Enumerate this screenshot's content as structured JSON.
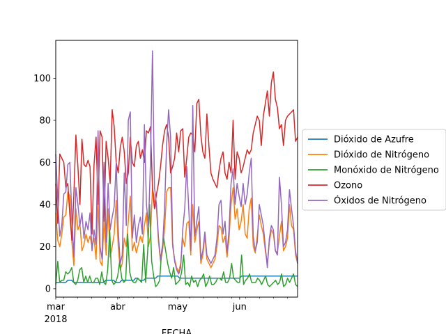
{
  "chart_data": {
    "type": "line",
    "title": "",
    "xlabel": "FECHA",
    "ylabel": "",
    "x_start": "2018-03-01",
    "x_end": "2018-06-30",
    "xlim": [
      "2018-03-01",
      "2018-06-30"
    ],
    "ylim": [
      -4,
      118
    ],
    "y_ticks": [
      0,
      20,
      40,
      60,
      80,
      100
    ],
    "x_ticks": [
      {
        "date": "2018-03-01",
        "label": "mar",
        "sublabel": "2018"
      },
      {
        "date": "2018-04-01",
        "label": "abr",
        "sublabel": ""
      },
      {
        "date": "2018-05-01",
        "label": "may",
        "sublabel": ""
      },
      {
        "date": "2018-06-01",
        "label": "jun",
        "sublabel": ""
      }
    ],
    "minor_tick_step_days": 7,
    "grid": false,
    "legend_position": "center-right",
    "series": [
      {
        "name": "Dióxido de Azufre",
        "color": "#1f77b4",
        "values": [
          3,
          3,
          3,
          3,
          3,
          3,
          4,
          4,
          4,
          3,
          3,
          3,
          3,
          3,
          3,
          3,
          3,
          3,
          3,
          3,
          3,
          3,
          3,
          3,
          3,
          4,
          4,
          4,
          4,
          4,
          3,
          3,
          3,
          4,
          4,
          4,
          4,
          4,
          4,
          4,
          5,
          5,
          4,
          4,
          4,
          5,
          5,
          5,
          5,
          5,
          5,
          6,
          6,
          6,
          6,
          6,
          6,
          6,
          6,
          6,
          6,
          6,
          5,
          5,
          5,
          5,
          5,
          5,
          5,
          5,
          5,
          5,
          5,
          5,
          5,
          5,
          5,
          5,
          5,
          5,
          5,
          5,
          5,
          5,
          5,
          5,
          5,
          5,
          5,
          5,
          5,
          5,
          5,
          6,
          6,
          6,
          6,
          6,
          6,
          6,
          6,
          6,
          6,
          6,
          6,
          6,
          6,
          6,
          6,
          6,
          6,
          6,
          6,
          6,
          6,
          6,
          6,
          6,
          6,
          6,
          6,
          6
        ]
      },
      {
        "name": "Dióxido de Nitrógeno",
        "color": "#ff7f0e",
        "values": [
          36,
          23,
          20,
          26,
          34,
          35,
          46,
          44,
          22,
          11,
          38,
          28,
          31,
          18,
          21,
          26,
          22,
          25,
          20,
          24,
          14,
          42,
          13,
          11,
          33,
          16,
          38,
          15,
          20,
          26,
          42,
          20,
          9,
          12,
          24,
          20,
          32,
          44,
          18,
          22,
          17,
          21,
          25,
          22,
          30,
          36,
          20,
          25,
          48,
          42,
          38,
          22,
          13,
          18,
          28,
          46,
          48,
          48,
          20,
          14,
          10,
          8,
          12,
          24,
          20,
          31,
          32,
          16,
          40,
          22,
          28,
          32,
          12,
          16,
          25,
          14,
          12,
          10,
          12,
          14,
          20,
          30,
          29,
          22,
          25,
          15,
          24,
          40,
          48,
          33,
          38,
          28,
          32,
          40,
          26,
          24,
          38,
          43,
          20,
          17,
          25,
          35,
          30,
          26,
          18,
          12,
          22,
          28,
          26,
          18,
          17,
          25,
          32,
          18,
          20,
          24,
          40,
          30,
          28,
          16,
          12
        ]
      },
      {
        "name": "Monóxido de Nitrógeno",
        "color": "#2ca02c",
        "values": [
          2,
          13,
          3,
          4,
          4,
          8,
          7,
          8,
          10,
          3,
          2,
          4,
          9,
          10,
          3,
          6,
          3,
          6,
          3,
          3,
          5,
          5,
          2,
          8,
          3,
          2,
          9,
          28,
          4,
          2,
          3,
          6,
          13,
          5,
          3,
          4,
          26,
          8,
          4,
          3,
          3,
          5,
          4,
          3,
          21,
          3,
          18,
          40,
          13,
          6,
          1,
          2,
          4,
          18,
          24,
          18,
          12,
          8,
          5,
          10,
          2,
          3,
          4,
          8,
          16,
          2,
          3,
          1,
          6,
          3,
          4,
          1,
          4,
          5,
          7,
          1,
          3,
          6,
          2,
          2,
          3,
          5,
          5,
          4,
          8,
          3,
          3,
          5,
          12,
          5,
          4,
          3,
          3,
          16,
          2,
          4,
          5,
          7,
          3,
          3,
          3,
          5,
          4,
          2,
          4,
          6,
          2,
          1,
          2,
          3,
          4,
          2,
          3,
          7,
          1,
          2,
          5,
          3,
          5,
          7,
          2,
          1
        ]
      },
      {
        "name": "Ozono",
        "color": "#d62728",
        "values": [
          50,
          31,
          64,
          62,
          60,
          48,
          50,
          35,
          23,
          45,
          73,
          58,
          40,
          71,
          59,
          58,
          61,
          58,
          26,
          59,
          72,
          40,
          75,
          72,
          32,
          70,
          62,
          50,
          85,
          77,
          60,
          55,
          67,
          72,
          65,
          50,
          55,
          72,
          60,
          58,
          68,
          70,
          62,
          66,
          60,
          75,
          74,
          77,
          48,
          38,
          45,
          50,
          58,
          68,
          75,
          78,
          72,
          55,
          58,
          62,
          74,
          65,
          75,
          76,
          53,
          62,
          72,
          74,
          73,
          65,
          88,
          90,
          73,
          65,
          62,
          83,
          68,
          55,
          52,
          50,
          48,
          56,
          62,
          65,
          55,
          52,
          60,
          55,
          80,
          52,
          65,
          62,
          55,
          58,
          62,
          66,
          64,
          66,
          74,
          78,
          82,
          80,
          68,
          82,
          88,
          94,
          82,
          98,
          103,
          90,
          86,
          76,
          78,
          68,
          80,
          82,
          83,
          84,
          85,
          70,
          72
        ]
      },
      {
        "name": "Óxidos de Nitrógeno",
        "color": "#9467bd",
        "values": [
          64,
          42,
          25,
          30,
          45,
          46,
          59,
          60,
          34,
          15,
          48,
          40,
          30,
          36,
          24,
          32,
          28,
          36,
          18,
          28,
          21,
          75,
          20,
          14,
          60,
          22,
          50,
          28,
          34,
          39,
          60,
          28,
          12,
          16,
          55,
          30,
          80,
          84,
          24,
          35,
          22,
          30,
          34,
          26,
          78,
          40,
          30,
          60,
          113,
          48,
          40,
          24,
          14,
          20,
          38,
          68,
          85,
          72,
          22,
          13,
          9,
          7,
          10,
          28,
          38,
          58,
          38,
          18,
          87,
          25,
          32,
          39,
          14,
          18,
          27,
          16,
          14,
          12,
          14,
          16,
          24,
          40,
          42,
          26,
          32,
          17,
          28,
          50,
          57,
          40,
          50,
          44,
          39,
          50,
          40,
          45,
          55,
          62,
          25,
          18,
          22,
          40,
          35,
          30,
          20,
          10,
          24,
          30,
          28,
          18,
          16,
          53,
          40,
          20,
          22,
          28,
          47,
          38,
          30,
          18,
          12
        ]
      }
    ]
  }
}
